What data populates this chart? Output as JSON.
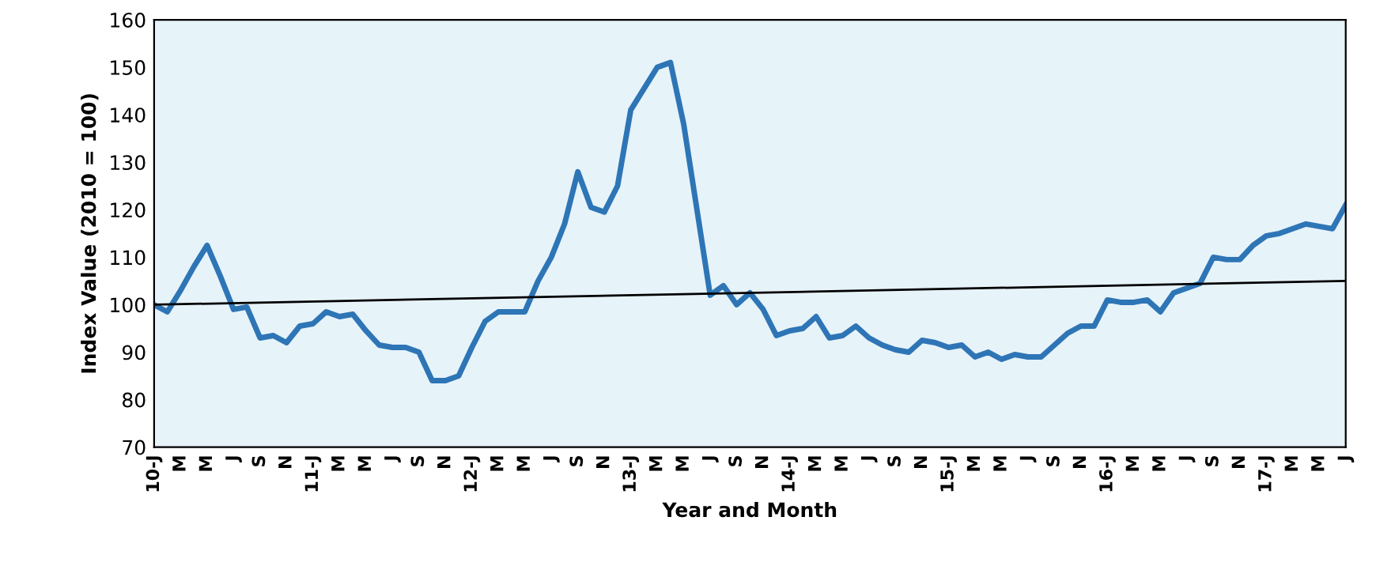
{
  "chart_data": {
    "type": "line",
    "xlabel": "Year and Month",
    "ylabel": "Index Value (2010 = 100)",
    "x": [
      "2010-01",
      "2010-02",
      "2010-03",
      "2010-04",
      "2010-05",
      "2010-06",
      "2010-07",
      "2010-08",
      "2010-09",
      "2010-10",
      "2010-11",
      "2010-12",
      "2011-01",
      "2011-02",
      "2011-03",
      "2011-04",
      "2011-05",
      "2011-06",
      "2011-07",
      "2011-08",
      "2011-09",
      "2011-10",
      "2011-11",
      "2011-12",
      "2012-01",
      "2012-02",
      "2012-03",
      "2012-04",
      "2012-05",
      "2012-06",
      "2012-07",
      "2012-08",
      "2012-09",
      "2012-10",
      "2012-11",
      "2012-12",
      "2013-01",
      "2013-02",
      "2013-03",
      "2013-04",
      "2013-05",
      "2013-06",
      "2013-07",
      "2013-08",
      "2013-09",
      "2013-10",
      "2013-11",
      "2013-12",
      "2014-01",
      "2014-02",
      "2014-03",
      "2014-04",
      "2014-05",
      "2014-06",
      "2014-07",
      "2014-08",
      "2014-09",
      "2014-10",
      "2014-11",
      "2014-12",
      "2015-01",
      "2015-02",
      "2015-03",
      "2015-04",
      "2015-05",
      "2015-06",
      "2015-07",
      "2015-08",
      "2015-09",
      "2015-10",
      "2015-11",
      "2015-12",
      "2016-01",
      "2016-02",
      "2016-03",
      "2016-04",
      "2016-05",
      "2016-06",
      "2016-07",
      "2016-08",
      "2016-09",
      "2016-10",
      "2016-11",
      "2016-12",
      "2017-01",
      "2017-02",
      "2017-03",
      "2017-04",
      "2017-05",
      "2017-06",
      "2017-07"
    ],
    "series": [
      {
        "color": "#2e75b6",
        "values": [
          100,
          98.5,
          103,
          108,
          112.5,
          106,
          99,
          99.5,
          93,
          93.5,
          92,
          95.5,
          96,
          98.5,
          97.5,
          98,
          94.5,
          91.5,
          91,
          91,
          90,
          84,
          84,
          85,
          91,
          96.5,
          98.5,
          98.5,
          98.5,
          105,
          110,
          117,
          128,
          120.5,
          119.5,
          125,
          141,
          145.5,
          150,
          151,
          138,
          120,
          102,
          104,
          100,
          102.5,
          99,
          93.5,
          94.5,
          95,
          97.5,
          93,
          93.5,
          95.5,
          93,
          91.5,
          90.5,
          90,
          92.5,
          92,
          91,
          91.5,
          89,
          90,
          88.5,
          89.5,
          89,
          89,
          91.5,
          94,
          95.5,
          95.5,
          101,
          100.5,
          100.5,
          101,
          98.5,
          102.5,
          103.5,
          104.5,
          110,
          109.5,
          109.5,
          112.5,
          114.5,
          115,
          116,
          117,
          116.5,
          116,
          121
        ]
      },
      {
        "type": "line",
        "color": "#000000",
        "x": [
          "2010-01",
          "2017-07"
        ],
        "values": [
          100,
          105
        ]
      }
    ],
    "xlim": [
      "2010-01",
      "2017-07"
    ],
    "xticks": [
      {
        "value": "2010-01",
        "label": "10-J"
      },
      {
        "value": "2010-03",
        "label": "M"
      },
      {
        "value": "2010-05",
        "label": "M"
      },
      {
        "value": "2010-07",
        "label": "J"
      },
      {
        "value": "2010-09",
        "label": "S"
      },
      {
        "value": "2010-11",
        "label": "N"
      },
      {
        "value": "2011-01",
        "label": "11-J"
      },
      {
        "value": "2011-03",
        "label": "M"
      },
      {
        "value": "2011-05",
        "label": "M"
      },
      {
        "value": "2011-07",
        "label": "J"
      },
      {
        "value": "2011-09",
        "label": "S"
      },
      {
        "value": "2011-11",
        "label": "N"
      },
      {
        "value": "2012-01",
        "label": "12-J"
      },
      {
        "value": "2012-03",
        "label": "M"
      },
      {
        "value": "2012-05",
        "label": "M"
      },
      {
        "value": "2012-07",
        "label": "J"
      },
      {
        "value": "2012-09",
        "label": "S"
      },
      {
        "value": "2012-11",
        "label": "N"
      },
      {
        "value": "2013-01",
        "label": "13-J"
      },
      {
        "value": "2013-03",
        "label": "M"
      },
      {
        "value": "2013-05",
        "label": "M"
      },
      {
        "value": "2013-07",
        "label": "J"
      },
      {
        "value": "2013-09",
        "label": "S"
      },
      {
        "value": "2013-11",
        "label": "N"
      },
      {
        "value": "2014-01",
        "label": "14-J"
      },
      {
        "value": "2014-03",
        "label": "M"
      },
      {
        "value": "2014-05",
        "label": "M"
      },
      {
        "value": "2014-07",
        "label": "J"
      },
      {
        "value": "2014-09",
        "label": "S"
      },
      {
        "value": "2014-11",
        "label": "N"
      },
      {
        "value": "2015-01",
        "label": "15-J"
      },
      {
        "value": "2015-03",
        "label": "M"
      },
      {
        "value": "2015-05",
        "label": "M"
      },
      {
        "value": "2015-07",
        "label": "J"
      },
      {
        "value": "2015-09",
        "label": "S"
      },
      {
        "value": "2015-11",
        "label": "N"
      },
      {
        "value": "2016-01",
        "label": "16-J"
      },
      {
        "value": "2016-03",
        "label": "M"
      },
      {
        "value": "2016-05",
        "label": "M"
      },
      {
        "value": "2016-07",
        "label": "J"
      },
      {
        "value": "2016-09",
        "label": "S"
      },
      {
        "value": "2016-11",
        "label": "N"
      },
      {
        "value": "2017-01",
        "label": "17-J"
      },
      {
        "value": "2017-03",
        "label": "M"
      },
      {
        "value": "2017-05",
        "label": "M"
      },
      {
        "value": "2017-07",
        "label": "J"
      }
    ],
    "ylim": [
      70,
      160
    ],
    "yticks": [
      70,
      80,
      90,
      100,
      110,
      120,
      130,
      140,
      150,
      160
    ],
    "grid": false,
    "legend": false
  }
}
